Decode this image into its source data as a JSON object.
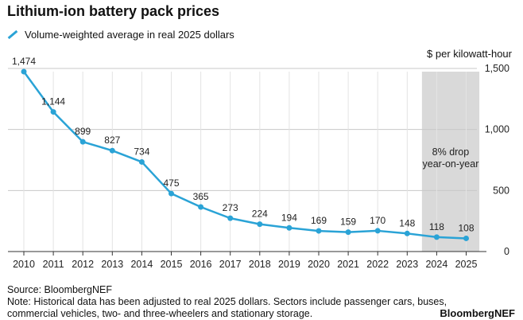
{
  "header": {
    "title": "Lithium-ion battery pack prices",
    "unit": "$ per kilowatt-hour"
  },
  "footer": {
    "source": "Source: BloombergNEF",
    "note": "Note: Historical data has been adjusted to real 2025 dollars. Sectors include passenger cars, buses, commercial vehicles, two- and three-wheelers and stationary storage.",
    "brand": "BloombergNEF"
  },
  "chart_data": {
    "type": "line",
    "title": "Lithium-ion battery pack prices",
    "ylabel": "$ per kilowatt-hour",
    "xlabel": "",
    "x": [
      2010,
      2011,
      2012,
      2013,
      2014,
      2015,
      2016,
      2017,
      2018,
      2019,
      2020,
      2021,
      2022,
      2023,
      2024,
      2025
    ],
    "series": [
      {
        "name": "Volume-weighted average in real 2025 dollars",
        "values": [
          1474,
          1144,
          899,
          827,
          734,
          475,
          365,
          273,
          224,
          194,
          169,
          159,
          170,
          148,
          118,
          108
        ],
        "labels": [
          "1,474",
          "1,144",
          "899",
          "827",
          "734",
          "475",
          "365",
          "273",
          "224",
          "194",
          "169",
          "159",
          "170",
          "148",
          "118",
          "108"
        ],
        "color": "#2aa3d6"
      }
    ],
    "ylim": [
      0,
      1500
    ],
    "yticks": [
      0,
      500,
      1000,
      1500
    ],
    "ytick_labels": [
      "0",
      "500",
      "1,000",
      "1,500"
    ],
    "grid": true,
    "y_axis_side": "right",
    "highlight": {
      "from": 2024,
      "to": 2025,
      "color": "#d9d9d9",
      "annotation": [
        "8% drop",
        "year-on-year"
      ]
    }
  }
}
